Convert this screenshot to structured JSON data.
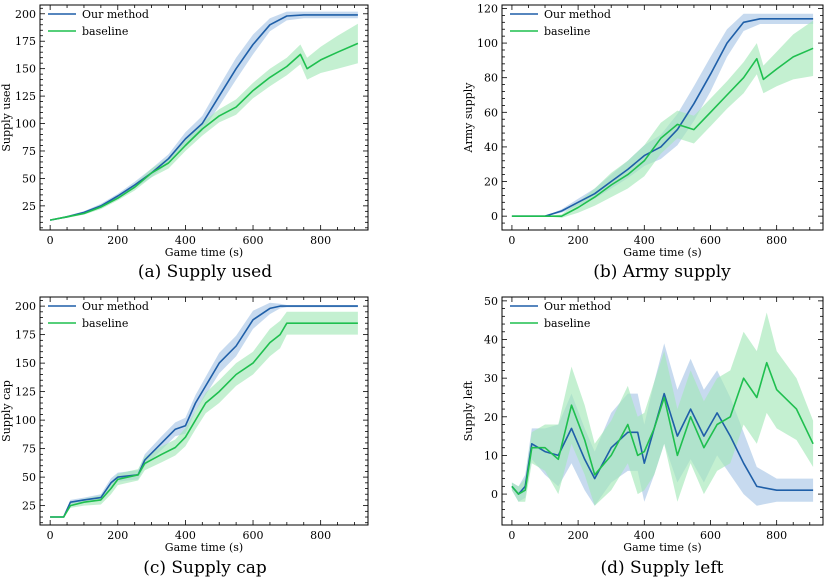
{
  "chart_data": [
    {
      "type": "line",
      "caption": "(a) Supply used",
      "xlabel": "Game time (s)",
      "ylabel": "Supply used",
      "xlim": [
        -30,
        940
      ],
      "ylim": [
        3,
        208
      ],
      "xticks": [
        0,
        200,
        400,
        600,
        800
      ],
      "yticks": [
        25,
        50,
        75,
        100,
        125,
        150,
        175,
        200
      ],
      "legend_position": "top-left",
      "series": [
        {
          "name": "Our method",
          "color": "#1f5fa8",
          "band_color": "#a9c6e6",
          "x": [
            0,
            50,
            100,
            150,
            200,
            250,
            300,
            350,
            400,
            450,
            500,
            550,
            600,
            650,
            700,
            750,
            800,
            850,
            910
          ],
          "y": [
            12,
            15,
            19,
            25,
            34,
            44,
            55,
            68,
            86,
            100,
            125,
            150,
            172,
            190,
            198,
            199,
            199,
            199,
            199
          ],
          "band": [
            0,
            1,
            1,
            2,
            2,
            3,
            4,
            4,
            6,
            7,
            9,
            10,
            9,
            6,
            4,
            3,
            3,
            3,
            3
          ]
        },
        {
          "name": "baseline",
          "color": "#1fbf4f",
          "band_color": "#a5e8b8",
          "x": [
            0,
            50,
            100,
            150,
            200,
            250,
            300,
            350,
            400,
            450,
            500,
            550,
            600,
            650,
            700,
            740,
            760,
            800,
            850,
            910
          ],
          "y": [
            12,
            15,
            18,
            24,
            32,
            42,
            55,
            64,
            80,
            95,
            107,
            115,
            130,
            142,
            152,
            163,
            150,
            158,
            165,
            173
          ],
          "band": [
            0,
            1,
            1,
            2,
            2,
            3,
            4,
            5,
            5,
            6,
            6,
            7,
            7,
            8,
            8,
            9,
            10,
            12,
            15,
            18
          ]
        }
      ]
    },
    {
      "type": "line",
      "caption": "(b) Army supply",
      "xlabel": "Game time (s)",
      "ylabel": "Army supply",
      "xlim": [
        -30,
        940
      ],
      "ylim": [
        -8,
        122
      ],
      "xticks": [
        0,
        200,
        400,
        600,
        800
      ],
      "yticks": [
        0,
        20,
        40,
        60,
        80,
        100,
        120
      ],
      "legend_position": "top-left",
      "series": [
        {
          "name": "Our method",
          "color": "#1f5fa8",
          "band_color": "#a9c6e6",
          "x": [
            0,
            50,
            100,
            150,
            200,
            250,
            300,
            350,
            400,
            450,
            500,
            550,
            600,
            650,
            700,
            750,
            800,
            850,
            910
          ],
          "y": [
            0,
            0,
            0,
            3,
            8,
            13,
            20,
            27,
            35,
            40,
            50,
            65,
            82,
            100,
            112,
            114,
            114,
            114,
            114
          ],
          "band": [
            0,
            0,
            0,
            1,
            2,
            3,
            4,
            5,
            6,
            7,
            9,
            10,
            10,
            8,
            5,
            3,
            3,
            3,
            3
          ]
        },
        {
          "name": "baseline",
          "color": "#1fbf4f",
          "band_color": "#a5e8b8",
          "x": [
            0,
            50,
            100,
            150,
            200,
            250,
            300,
            350,
            400,
            450,
            500,
            550,
            600,
            650,
            700,
            740,
            760,
            800,
            850,
            910
          ],
          "y": [
            0,
            0,
            0,
            0,
            5,
            11,
            18,
            24,
            32,
            45,
            53,
            50,
            60,
            70,
            80,
            91,
            79,
            85,
            92,
            97
          ],
          "band": [
            0,
            0,
            0,
            1,
            3,
            5,
            7,
            8,
            9,
            9,
            8,
            8,
            8,
            8,
            9,
            9,
            8,
            10,
            13,
            16
          ]
        }
      ]
    },
    {
      "type": "line",
      "caption": "(c) Supply cap",
      "xlabel": "Game time (s)",
      "ylabel": "Supply cap",
      "xlim": [
        -30,
        940
      ],
      "ylim": [
        8,
        208
      ],
      "xticks": [
        0,
        200,
        400,
        600,
        800
      ],
      "yticks": [
        25,
        50,
        75,
        100,
        125,
        150,
        175,
        200
      ],
      "legend_position": "top-left",
      "series": [
        {
          "name": "Our method",
          "color": "#1f5fa8",
          "band_color": "#a9c6e6",
          "x": [
            0,
            40,
            60,
            100,
            150,
            180,
            200,
            260,
            280,
            330,
            370,
            400,
            430,
            460,
            500,
            550,
            600,
            650,
            680,
            700,
            800,
            910
          ],
          "y": [
            15,
            15,
            28,
            30,
            32,
            45,
            50,
            52,
            65,
            80,
            92,
            95,
            115,
            130,
            150,
            165,
            188,
            198,
            200,
            200,
            200,
            200
          ],
          "band": [
            0,
            0,
            2,
            2,
            3,
            4,
            4,
            4,
            5,
            6,
            6,
            7,
            7,
            8,
            9,
            9,
            8,
            5,
            2,
            1,
            1,
            1
          ]
        },
        {
          "name": "baseline",
          "color": "#1fbf4f",
          "band_color": "#a5e8b8",
          "x": [
            0,
            40,
            60,
            100,
            150,
            180,
            200,
            260,
            280,
            330,
            370,
            400,
            430,
            460,
            500,
            550,
            600,
            650,
            680,
            700,
            800,
            910
          ],
          "y": [
            15,
            15,
            25,
            28,
            30,
            40,
            48,
            52,
            62,
            70,
            76,
            85,
            100,
            115,
            125,
            140,
            150,
            168,
            175,
            185,
            185,
            185
          ],
          "band": [
            0,
            0,
            2,
            3,
            4,
            5,
            5,
            5,
            6,
            7,
            7,
            8,
            8,
            9,
            10,
            10,
            10,
            12,
            12,
            10,
            10,
            10
          ]
        }
      ]
    },
    {
      "type": "line",
      "caption": "(d) Supply left",
      "xlabel": "Game time (s)",
      "ylabel": "Supply left",
      "xlim": [
        -30,
        940
      ],
      "ylim": [
        -8,
        51
      ],
      "xticks": [
        0,
        200,
        400,
        600,
        800
      ],
      "yticks": [
        0,
        10,
        20,
        30,
        40,
        50
      ],
      "legend_position": "top-left",
      "series": [
        {
          "name": "Our method",
          "color": "#1f5fa8",
          "band_color": "#a9c6e6",
          "x": [
            0,
            20,
            40,
            60,
            100,
            140,
            180,
            220,
            250,
            300,
            350,
            380,
            400,
            430,
            460,
            500,
            540,
            580,
            620,
            660,
            700,
            740,
            800,
            860,
            910
          ],
          "y": [
            2,
            0,
            2,
            13,
            11,
            10,
            17,
            9,
            4,
            12,
            16,
            16,
            8,
            17,
            26,
            15,
            22,
            15,
            21,
            15,
            8,
            2,
            1,
            1,
            1
          ],
          "band": [
            1,
            2,
            3,
            4,
            6,
            8,
            9,
            8,
            7,
            9,
            10,
            10,
            10,
            12,
            13,
            12,
            13,
            12,
            11,
            10,
            8,
            5,
            3,
            3,
            3
          ]
        },
        {
          "name": "baseline",
          "color": "#1fbf4f",
          "band_color": "#a5e8b8",
          "x": [
            0,
            20,
            40,
            60,
            100,
            140,
            180,
            220,
            250,
            300,
            350,
            380,
            400,
            430,
            460,
            500,
            540,
            580,
            620,
            660,
            700,
            740,
            770,
            800,
            860,
            910
          ],
          "y": [
            2,
            0,
            1,
            12,
            12,
            9,
            23,
            14,
            5,
            10,
            18,
            10,
            11,
            17,
            25,
            10,
            20,
            12,
            18,
            20,
            30,
            25,
            34,
            27,
            22,
            13
          ],
          "band": [
            1,
            2,
            3,
            4,
            6,
            9,
            10,
            9,
            8,
            9,
            10,
            10,
            10,
            12,
            12,
            12,
            12,
            12,
            12,
            12,
            12,
            12,
            13,
            10,
            8,
            6
          ]
        }
      ]
    }
  ]
}
